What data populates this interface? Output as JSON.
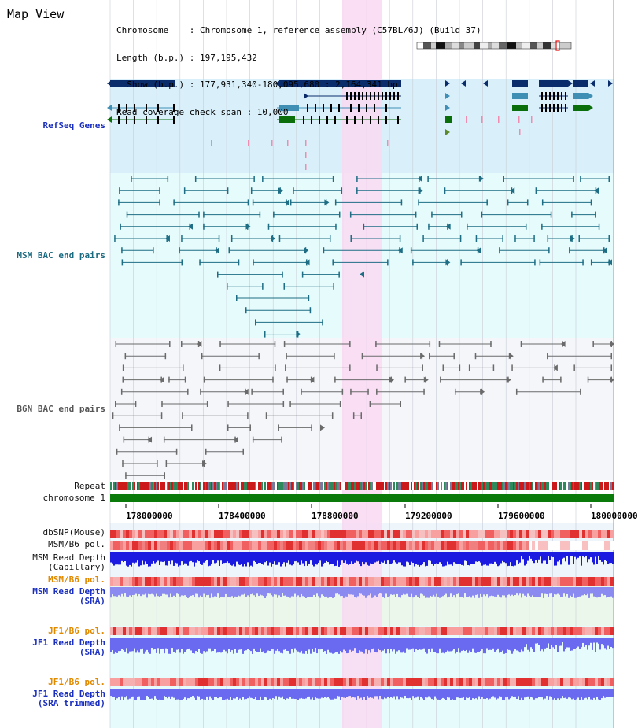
{
  "view_title": "Map View",
  "info": {
    "chromosome": "Chromosome    : Chromosome 1, reference assembly (C57BL/6J) (Build 37)",
    "length": "Length (b.p.) : 197,195,432",
    "show": "  Show (b.p.) : 177,931,340-180,095,680 : 2,164,341 bp",
    "coverage": "Read coverage check span : 10,000"
  },
  "tracks": {
    "refseq": "RefSeq Genes",
    "msm_bac": "MSM BAC end pairs",
    "b6n_bac": "B6N BAC end pairs",
    "repeat": "Repeat",
    "chromosome": "chromosome 1",
    "dbsnp": "dbSNP(Mouse)",
    "msm_b6_pol": "MSM/B6 pol.",
    "msm_read_depth_cap_1": "MSM Read Depth",
    "msm_read_depth_cap_2": "(Capillary)",
    "msm_b6_pol_sra": "MSM/B6 pol.",
    "msm_read_depth_sra_1": "MSM Read Depth",
    "msm_read_depth_sra_2": "(SRA)",
    "jf1_b6_pol": "JF1/B6 pol.",
    "jf1_read_depth_1": "JF1 Read Depth",
    "jf1_read_depth_2": "(SRA)",
    "jf1_b6_pol_trim": "JF1/B6 pol.",
    "jf1_read_depth_trim_1": "JF1 Read Depth",
    "jf1_read_depth_trim_2": "(SRA trimmed)"
  },
  "axis_ticks": [
    "178000000",
    "178400000",
    "178800000",
    "179200000",
    "179600000",
    "180000000"
  ],
  "colors": {
    "refseq_bg": "#d9f0fa",
    "bac_bg": "#e6fbfb",
    "b6n_bg": "#f4f6fa",
    "highlight": "#f9d9f2",
    "chromosome_bar": "#0a7a0a",
    "gene_dark": "#0b2c6b",
    "gene_mid": "#3f8fb5",
    "gene_green": "#0a6e0a",
    "msm_pair": "#1d6d85",
    "b6n_pair": "#6a6a6a"
  }
}
